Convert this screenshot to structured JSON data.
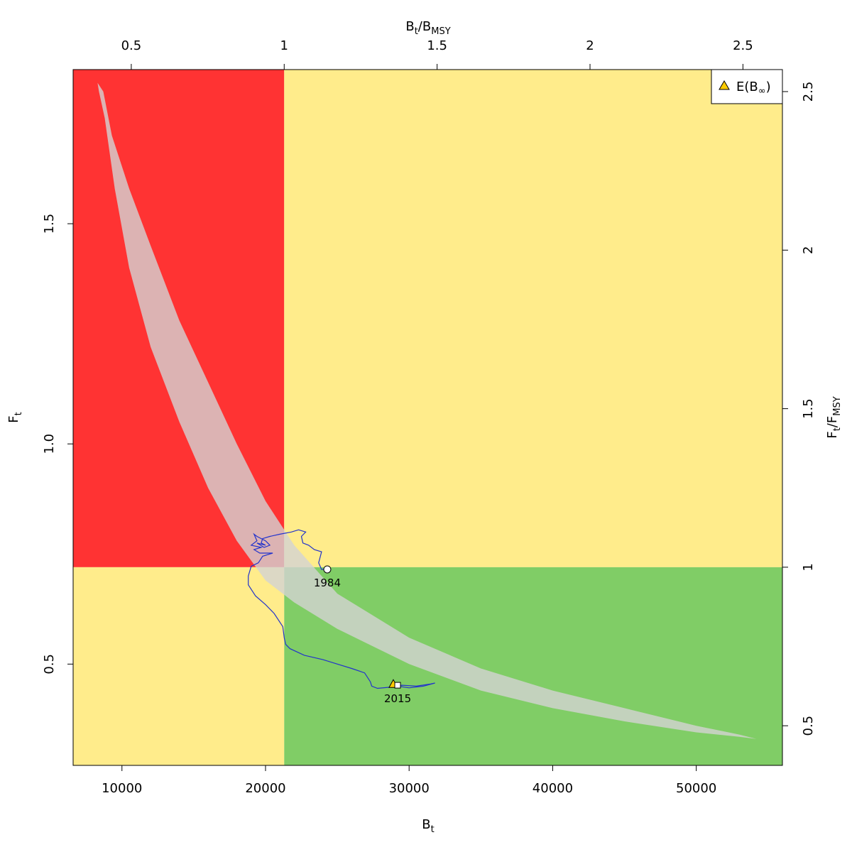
{
  "chart_data": {
    "type": "scatter",
    "title": "",
    "xlabel": {
      "base": "B",
      "sub": "t"
    },
    "ylabel": {
      "base": "F",
      "sub": "t"
    },
    "x2label": {
      "base1": "B",
      "sub1": "t",
      "slash": "/",
      "base2": "B",
      "sub2": "MSY"
    },
    "y2label": {
      "base1": "F",
      "sub1": "t",
      "slash": "/",
      "base2": "F",
      "sub2": "MSY"
    },
    "xlim": [
      6600,
      56000
    ],
    "ylim": [
      0.27,
      1.85
    ],
    "bmsy": 21300,
    "fmsy": 0.72,
    "grid": false,
    "x_ticks": [
      10000,
      20000,
      30000,
      40000,
      50000
    ],
    "x_tick_labels": [
      "10000",
      "20000",
      "30000",
      "40000",
      "50000"
    ],
    "y_ticks": [
      0.5,
      1.0,
      1.5
    ],
    "y_tick_labels": [
      "0.5",
      "1.0",
      "1.5"
    ],
    "x2_ticks": [
      0.5,
      1,
      1.5,
      2,
      2.5
    ],
    "x2_tick_labels": [
      "0.5",
      "1",
      "1.5",
      "2",
      "2.5"
    ],
    "y2_ticks": [
      0.5,
      1,
      1.5,
      2,
      2.5
    ],
    "y2_tick_labels": [
      "0.5",
      "1",
      "1.5",
      "2",
      "2.5"
    ],
    "zones": {
      "overfished_overfishing": "#ff3333",
      "caution": "#ffec8b",
      "healthy": "#80cd66"
    },
    "ellipse": {
      "color": "#d3d3d3",
      "opacity": 0.8,
      "upper_edge": [
        [
          8300,
          1.82
        ],
        [
          8700,
          1.8
        ],
        [
          9300,
          1.7
        ],
        [
          10500,
          1.58
        ],
        [
          12000,
          1.45
        ],
        [
          14000,
          1.28
        ],
        [
          16000,
          1.14
        ],
        [
          18000,
          1.0
        ],
        [
          20000,
          0.87
        ],
        [
          22000,
          0.77
        ],
        [
          25000,
          0.66
        ],
        [
          30000,
          0.56
        ],
        [
          35000,
          0.49
        ],
        [
          40000,
          0.44
        ],
        [
          45000,
          0.4
        ],
        [
          50000,
          0.36
        ],
        [
          53000,
          0.34
        ],
        [
          54200,
          0.33
        ]
      ],
      "lower_edge": [
        [
          54200,
          0.33
        ],
        [
          53000,
          0.335
        ],
        [
          50000,
          0.345
        ],
        [
          45000,
          0.37
        ],
        [
          40000,
          0.4
        ],
        [
          35000,
          0.44
        ],
        [
          30000,
          0.5
        ],
        [
          25000,
          0.58
        ],
        [
          22000,
          0.64
        ],
        [
          20000,
          0.69
        ],
        [
          18000,
          0.78
        ],
        [
          16000,
          0.9
        ],
        [
          14000,
          1.05
        ],
        [
          12000,
          1.22
        ],
        [
          10500,
          1.4
        ],
        [
          9500,
          1.58
        ],
        [
          8800,
          1.74
        ],
        [
          8400,
          1.8
        ]
      ]
    },
    "trajectory": {
      "color": "#2233cc",
      "points": [
        [
          24300,
          0.715
        ],
        [
          23900,
          0.715
        ],
        [
          23700,
          0.73
        ],
        [
          23900,
          0.755
        ],
        [
          23400,
          0.76
        ],
        [
          23000,
          0.77
        ],
        [
          22600,
          0.775
        ],
        [
          22500,
          0.79
        ],
        [
          22800,
          0.8
        ],
        [
          22300,
          0.805
        ],
        [
          21800,
          0.8
        ],
        [
          21000,
          0.795
        ],
        [
          20300,
          0.79
        ],
        [
          19800,
          0.785
        ],
        [
          19700,
          0.775
        ],
        [
          20000,
          0.77
        ],
        [
          19400,
          0.775
        ],
        [
          19900,
          0.765
        ],
        [
          20300,
          0.77
        ],
        [
          20000,
          0.78
        ],
        [
          19400,
          0.79
        ],
        [
          19200,
          0.795
        ],
        [
          19400,
          0.78
        ],
        [
          19000,
          0.77
        ],
        [
          19700,
          0.765
        ],
        [
          19200,
          0.76
        ],
        [
          19600,
          0.752
        ],
        [
          20500,
          0.752
        ],
        [
          19800,
          0.745
        ],
        [
          19500,
          0.73
        ],
        [
          19000,
          0.722
        ],
        [
          18800,
          0.7
        ],
        [
          18800,
          0.68
        ],
        [
          19300,
          0.655
        ],
        [
          20000,
          0.635
        ],
        [
          20600,
          0.615
        ],
        [
          21200,
          0.585
        ],
        [
          21300,
          0.56
        ],
        [
          21400,
          0.545
        ],
        [
          21700,
          0.535
        ],
        [
          22700,
          0.52
        ],
        [
          24000,
          0.51
        ],
        [
          25000,
          0.5
        ],
        [
          26000,
          0.49
        ],
        [
          26900,
          0.48
        ],
        [
          27300,
          0.46
        ],
        [
          27400,
          0.45
        ],
        [
          27800,
          0.445
        ],
        [
          28800,
          0.448
        ],
        [
          29500,
          0.452
        ],
        [
          30500,
          0.45
        ],
        [
          31500,
          0.455
        ],
        [
          31800,
          0.457
        ],
        [
          31000,
          0.45
        ],
        [
          30000,
          0.446
        ],
        [
          29200,
          0.45
        ]
      ]
    },
    "first_point": {
      "x": 24300,
      "y": 0.715,
      "label": "1984"
    },
    "last_point": {
      "x": 29200,
      "y": 0.452,
      "label": "2015"
    },
    "equilibrium_point": {
      "x": 28900,
      "y": 0.455
    },
    "legend": {
      "placement": "top-right",
      "label_prefix": "E(B",
      "label_sub": "∞",
      "label_suffix": ")",
      "marker_color": "#ffcc00"
    }
  }
}
